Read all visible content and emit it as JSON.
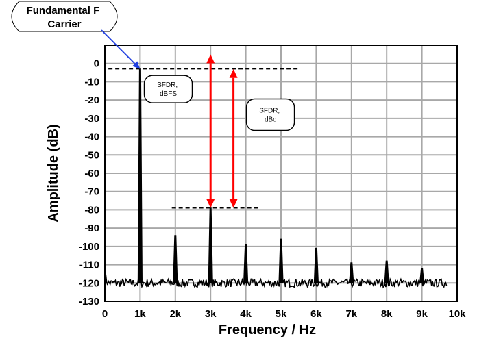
{
  "chart_data": {
    "type": "line",
    "title": "",
    "xlabel": "Frequency / Hz",
    "ylabel": "Amplitude (dB)",
    "xlim": [
      0,
      10000
    ],
    "ylim": [
      -130,
      10
    ],
    "grid": true,
    "x_ticks": [
      0,
      1000,
      2000,
      3000,
      4000,
      5000,
      6000,
      7000,
      8000,
      9000,
      10000
    ],
    "x_tick_labels": [
      "0",
      "1k",
      "2k",
      "3k",
      "4k",
      "5k",
      "6k",
      "7k",
      "8k",
      "9k",
      "10k"
    ],
    "y_ticks": [
      0,
      -10,
      -20,
      -30,
      -40,
      -50,
      -60,
      -70,
      -80,
      -90,
      -100,
      -110,
      -120,
      -130
    ],
    "y_tick_labels": [
      "0",
      "-10",
      "-20",
      "-30",
      "-40",
      "-50",
      "-60",
      "-70",
      "-80",
      "-90",
      "-100",
      "-110",
      "-120",
      "-130"
    ],
    "noise_floor_db": -120,
    "noise_x_range": [
      0,
      9700
    ],
    "peaks": [
      {
        "freq": 1000,
        "db": -3
      },
      {
        "freq": 2000,
        "db": -94
      },
      {
        "freq": 3000,
        "db": -79
      },
      {
        "freq": 4000,
        "db": -99
      },
      {
        "freq": 5000,
        "db": -96
      },
      {
        "freq": 6000,
        "db": -101
      },
      {
        "freq": 7000,
        "db": -109
      },
      {
        "freq": 8000,
        "db": -108
      },
      {
        "freq": 9000,
        "db": -112
      }
    ],
    "reference_lines": [
      {
        "db": -3,
        "x_range": [
          100,
          5500
        ]
      },
      {
        "db": -79,
        "x_range": [
          1900,
          4400
        ]
      }
    ],
    "measurement_arrows": [
      {
        "x": 3000,
        "from_db": 5,
        "to_db": -79
      },
      {
        "x": 3650,
        "from_db": -3,
        "to_db": -79
      }
    ],
    "annotations": {
      "carrier": {
        "line1": "Fundamental F",
        "line2": "Carrier",
        "target_freq": 1000,
        "target_db": -3
      },
      "sfdr_dbfs": {
        "line1": "SFDR,",
        "line2": "dBFS",
        "freq": 1800,
        "db": -14
      },
      "sfdr_dbc": {
        "line1": "SFDR,",
        "line2": "dBc",
        "freq": 4700,
        "db": -28
      }
    }
  }
}
